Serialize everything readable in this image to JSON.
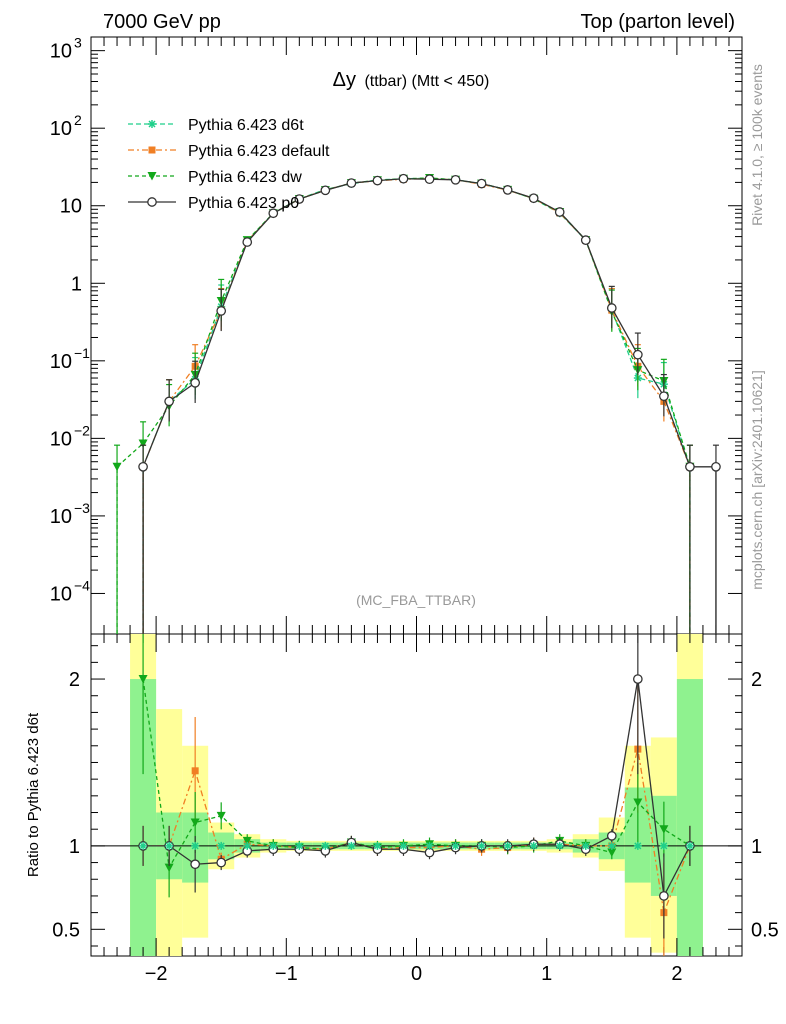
{
  "header": {
    "left": "7000 GeV pp",
    "right": "Top (parton level)"
  },
  "title": {
    "main": "Δy",
    "sub": "(ttbar) (Mtt < 450)"
  },
  "watermark": "(MC_FBA_TTBAR)",
  "side_labels": {
    "rivet": "Rivet 4.1.0, ≥ 100k events",
    "mcplots": "mcplots.cern.ch [arXiv:2401.10621]"
  },
  "ratio_ylabel": "Ratio to Pythia 6.423 d6t",
  "colors": {
    "d6t": "#1fcf8a",
    "default": "#f07f24",
    "dw": "#12a81a",
    "p0": "#333333",
    "band_inner": "#8ff28f",
    "band_outer": "#ffff99"
  },
  "chart_data": [
    {
      "type": "line",
      "title": "Δy (ttbar) (Mtt < 450)",
      "xlabel": "",
      "ylabel": "",
      "xlim": [
        -2.5,
        2.5
      ],
      "ylim": [
        3e-05,
        1500
      ],
      "yscale": "log",
      "x_ticks": [
        "−2",
        "−1",
        "0",
        "1",
        "2"
      ],
      "y_ticks": [
        "10^-4",
        "10^-3",
        "10^-2",
        "10^-1",
        "1",
        "10",
        "10^2",
        "10^3"
      ],
      "legend": [
        "Pythia 6.423 d6t",
        "Pythia 6.423 default",
        "Pythia 6.423 dw",
        "Pythia 6.423 p0"
      ],
      "legend_position": "top-left",
      "x": [
        -2.1,
        -1.9,
        -1.7,
        -1.5,
        -1.3,
        -1.1,
        -0.9,
        -0.7,
        -0.5,
        -0.3,
        -0.1,
        0.1,
        0.3,
        0.5,
        0.7,
        0.9,
        1.1,
        1.3,
        1.5,
        1.7,
        1.9,
        2.1
      ],
      "series": [
        {
          "name": "Pythia 6.423 d6t",
          "marker": "star",
          "x": [
            -2.1,
            -1.9,
            -1.7,
            -1.5,
            -1.3,
            -1.1,
            -0.9,
            -0.7,
            -0.5,
            -0.3,
            -0.1,
            0.1,
            0.3,
            0.5,
            0.7,
            0.9,
            1.1,
            1.3,
            1.5,
            1.7,
            1.9,
            2.1
          ],
          "values": [
            0.0043,
            0.03,
            0.058,
            0.5,
            3.5,
            8.0,
            12.3,
            16.2,
            19.2,
            21.5,
            22.3,
            22.6,
            21.6,
            19.3,
            16.0,
            12.3,
            8.0,
            3.6,
            0.45,
            0.06,
            0.05,
            0.0043
          ]
        },
        {
          "name": "Pythia 6.423 default",
          "marker": "square",
          "x": [
            -2.1,
            -1.9,
            -1.7,
            -1.5,
            -1.3,
            -1.1,
            -0.9,
            -0.7,
            -0.5,
            -0.3,
            -0.1,
            0.1,
            0.3,
            0.5,
            0.7,
            0.9,
            1.1,
            1.3,
            1.5,
            1.7,
            1.9,
            2.1
          ],
          "values": [
            0.0043,
            0.03,
            0.085,
            0.45,
            3.5,
            8.0,
            12.2,
            15.9,
            19.6,
            21.0,
            22.0,
            22.3,
            21.6,
            18.9,
            15.9,
            12.4,
            8.1,
            3.6,
            0.45,
            0.085,
            0.03,
            0.0043
          ]
        },
        {
          "name": "Pythia 6.423 dw",
          "marker": "triangle-down",
          "x": [
            -2.3,
            -2.1,
            -1.9,
            -1.7,
            -1.5,
            -1.3,
            -1.1,
            -0.9,
            -0.7,
            -0.5,
            -0.3,
            -0.1,
            0.1,
            0.3,
            0.5,
            0.7,
            0.9,
            1.1,
            1.3,
            1.5,
            1.7,
            1.9,
            2.1
          ],
          "values": [
            0.0043,
            0.0086,
            0.026,
            0.066,
            0.59,
            3.6,
            8.0,
            12.2,
            15.9,
            19.6,
            21.3,
            22.3,
            22.8,
            21.6,
            19.3,
            16.0,
            12.3,
            8.3,
            3.6,
            0.43,
            0.076,
            0.055,
            0.0043
          ]
        },
        {
          "name": "Pythia 6.423 p0",
          "marker": "open-circle",
          "x": [
            -2.1,
            -1.9,
            -1.7,
            -1.5,
            -1.3,
            -1.1,
            -0.9,
            -0.7,
            -0.5,
            -0.3,
            -0.1,
            0.1,
            0.3,
            0.5,
            0.7,
            0.9,
            1.1,
            1.3,
            1.5,
            1.7,
            1.9,
            2.1,
            2.3
          ],
          "values": [
            0.0043,
            0.03,
            0.052,
            0.44,
            3.4,
            8.0,
            12.2,
            15.8,
            19.6,
            21.1,
            22.3,
            22.0,
            21.6,
            19.3,
            16.0,
            12.5,
            8.3,
            3.6,
            0.48,
            0.12,
            0.035,
            0.0043,
            0.0043
          ]
        }
      ],
      "annotations": [
        "(MC_FBA_TTBAR)"
      ]
    },
    {
      "type": "line",
      "title": "",
      "xlabel": "",
      "ylabel": "Ratio to Pythia 6.423 d6t",
      "xlim": [
        -2.5,
        2.5
      ],
      "ylim": [
        0.34,
        2.27
      ],
      "x_ticks": [
        "−2",
        "−1",
        "0",
        "1",
        "2"
      ],
      "y_ticks": [
        "0.5",
        "1",
        "2"
      ],
      "bins": [
        [
          -2.2,
          -2.0
        ],
        [
          -2.0,
          -1.8
        ],
        [
          -1.8,
          -1.6
        ],
        [
          -1.6,
          -1.4
        ],
        [
          -1.4,
          -1.2
        ],
        [
          -1.2,
          -1.0
        ],
        [
          -1.0,
          -0.8
        ],
        [
          -0.8,
          -0.6
        ],
        [
          -0.6,
          -0.4
        ],
        [
          -0.4,
          -0.2
        ],
        [
          -0.2,
          0.0
        ],
        [
          0.0,
          0.2
        ],
        [
          0.2,
          0.4
        ],
        [
          0.4,
          0.6
        ],
        [
          0.6,
          0.8
        ],
        [
          0.8,
          1.0
        ],
        [
          1.0,
          1.2
        ],
        [
          1.2,
          1.4
        ],
        [
          1.4,
          1.6
        ],
        [
          1.6,
          1.8
        ],
        [
          1.8,
          2.0
        ],
        [
          2.0,
          2.2
        ]
      ],
      "band_inner": [
        [
          0.0,
          2.0
        ],
        [
          0.8,
          1.2
        ],
        [
          0.78,
          1.2
        ],
        [
          0.92,
          1.08
        ],
        [
          0.96,
          1.04
        ],
        [
          0.98,
          1.02
        ],
        [
          0.98,
          1.02
        ],
        [
          0.98,
          1.02
        ],
        [
          0.98,
          1.02
        ],
        [
          0.98,
          1.02
        ],
        [
          0.98,
          1.02
        ],
        [
          0.98,
          1.02
        ],
        [
          0.98,
          1.02
        ],
        [
          0.98,
          1.02
        ],
        [
          0.98,
          1.02
        ],
        [
          0.98,
          1.02
        ],
        [
          0.98,
          1.02
        ],
        [
          0.96,
          1.04
        ],
        [
          0.92,
          1.08
        ],
        [
          0.78,
          1.35
        ],
        [
          0.7,
          1.3
        ],
        [
          0.0,
          2.0
        ]
      ],
      "band_outer": [
        [
          0.0,
          2.4
        ],
        [
          0.33,
          1.82
        ],
        [
          0.45,
          1.6
        ],
        [
          0.86,
          1.14
        ],
        [
          0.93,
          1.07
        ],
        [
          0.96,
          1.04
        ],
        [
          0.97,
          1.03
        ],
        [
          0.97,
          1.03
        ],
        [
          0.97,
          1.03
        ],
        [
          0.97,
          1.03
        ],
        [
          0.97,
          1.03
        ],
        [
          0.97,
          1.03
        ],
        [
          0.97,
          1.03
        ],
        [
          0.97,
          1.03
        ],
        [
          0.97,
          1.03
        ],
        [
          0.97,
          1.03
        ],
        [
          0.96,
          1.04
        ],
        [
          0.93,
          1.07
        ],
        [
          0.85,
          1.17
        ],
        [
          0.45,
          1.6
        ],
        [
          0.36,
          1.65
        ],
        [
          0.0,
          2.4
        ]
      ],
      "series": [
        {
          "name": "Pythia 6.423 default",
          "x": [
            -2.1,
            -1.9,
            -1.7,
            -1.5,
            -1.3,
            -1.1,
            -0.9,
            -0.7,
            -0.5,
            -0.3,
            -0.1,
            0.1,
            0.3,
            0.5,
            0.7,
            0.9,
            1.1,
            1.3,
            1.5,
            1.7,
            1.9,
            2.1
          ],
          "values": [
            1.0,
            1.0,
            1.45,
            0.92,
            1.01,
            1.0,
            0.99,
            0.98,
            1.02,
            0.98,
            0.99,
            0.99,
            1.0,
            0.98,
            0.99,
            1.01,
            1.01,
            1.0,
            1.0,
            1.58,
            0.6,
            1.0
          ]
        },
        {
          "name": "Pythia 6.423 dw",
          "x": [
            -2.1,
            -1.9,
            -1.7,
            -1.5,
            -1.3,
            -1.1,
            -0.9,
            -0.7,
            -0.5,
            -0.3,
            -0.1,
            0.1,
            0.3,
            0.5,
            0.7,
            0.9,
            1.1,
            1.3,
            1.5,
            1.7,
            1.9,
            2.1
          ],
          "values": [
            2.0,
            0.87,
            1.14,
            1.18,
            1.03,
            1.0,
            0.99,
            0.98,
            1.02,
            0.99,
            1.0,
            1.01,
            1.0,
            1.0,
            0.99,
            1.0,
            1.03,
            1.0,
            0.96,
            1.26,
            1.1,
            1.0
          ]
        },
        {
          "name": "Pythia 6.423 p0",
          "x": [
            -2.1,
            -1.9,
            -1.7,
            -1.5,
            -1.3,
            -1.1,
            -0.9,
            -0.7,
            -0.5,
            -0.3,
            -0.1,
            0.1,
            0.3,
            0.5,
            0.7,
            0.9,
            1.1,
            1.3,
            1.5,
            1.7,
            1.9,
            2.1
          ],
          "values": [
            1.0,
            1.0,
            0.89,
            0.9,
            0.97,
            0.98,
            0.98,
            0.97,
            1.02,
            0.98,
            0.98,
            0.96,
            0.99,
            1.0,
            1.0,
            1.01,
            1.01,
            0.98,
            1.06,
            2.0,
            0.7,
            1.0
          ]
        }
      ]
    }
  ]
}
